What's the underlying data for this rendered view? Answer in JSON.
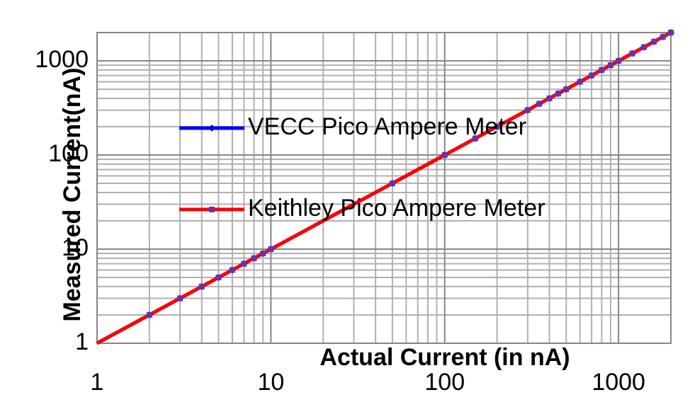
{
  "chart_data": {
    "type": "line",
    "log_x": true,
    "log_y": true,
    "grid": true,
    "legend_position": "upper left",
    "x_label": "Actual Current (in nA)",
    "y_label": "Measured Current(nA)",
    "x": [
      1,
      2,
      3,
      4,
      5,
      6,
      7,
      8,
      9,
      10,
      50,
      100,
      150,
      200,
      300,
      350,
      400,
      450,
      500,
      600,
      700,
      800,
      900,
      1000,
      1200,
      1400,
      1600,
      1800,
      2000
    ],
    "series": [
      {
        "name": "VECC Pico Ampere Meter",
        "color": "#0000ff",
        "marker": "diamond",
        "values": [
          1,
          2,
          3,
          4,
          5,
          6,
          7,
          8,
          9,
          10,
          50,
          100,
          150,
          200,
          300,
          350,
          400,
          450,
          500,
          600,
          700,
          800,
          900,
          1000,
          1200,
          1400,
          1600,
          1800,
          2000
        ]
      },
      {
        "name": "Keithley Pico Ampere Meter",
        "color": "#ff0000",
        "marker_color": "#7030a0",
        "marker": "square",
        "values": [
          1,
          2,
          3,
          4,
          5,
          6,
          7,
          8,
          9,
          10,
          50,
          100,
          150,
          200,
          300,
          350,
          400,
          450,
          500,
          600,
          700,
          800,
          900,
          1000,
          1200,
          1400,
          1600,
          1800,
          2000
        ]
      }
    ],
    "xlim": [
      1,
      2000
    ],
    "ylim": [
      1,
      2000
    ],
    "xticks": [
      1,
      10,
      100,
      1000
    ],
    "yticks": [
      1,
      10,
      100,
      1000
    ],
    "xminorticks": [
      2,
      3,
      4,
      5,
      6,
      7,
      8,
      9,
      20,
      30,
      40,
      50,
      60,
      70,
      80,
      90,
      200,
      300,
      400,
      500,
      600,
      700,
      800,
      900
    ],
    "yminorticks": [
      2,
      3,
      4,
      5,
      6,
      7,
      8,
      9,
      20,
      30,
      40,
      50,
      60,
      70,
      80,
      90,
      200,
      300,
      400,
      500,
      600,
      700,
      800,
      900
    ]
  }
}
